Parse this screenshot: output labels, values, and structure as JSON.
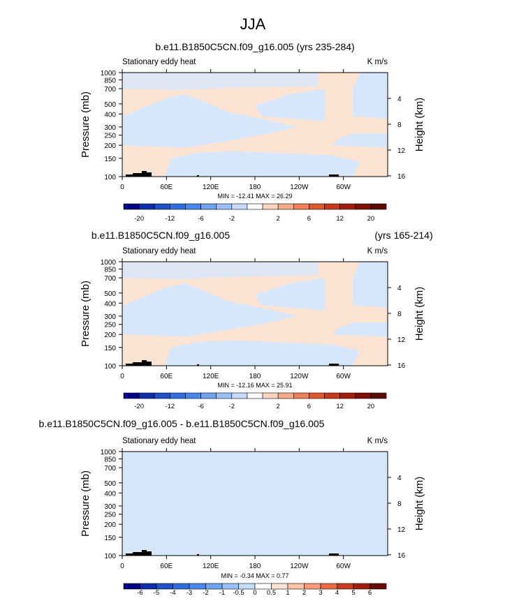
{
  "page_title": "JJA",
  "colors": {
    "blue_shade": "#d6e6fb",
    "peach_shade": "#fde3d2",
    "topography": "#000000"
  },
  "chart_data": [
    {
      "type": "heatmap",
      "title": "b.e11.B1850C5CN.f09_g16.005 (yrs 235-284)",
      "title_right": "",
      "left_string": "Stationary eddy heat",
      "right_string": "K m/s",
      "ylabel": "Pressure (mb)",
      "y2label": "Height (km)",
      "y_scale": "log",
      "ylim": [
        1000,
        100
      ],
      "y_ticks": [
        100,
        150,
        200,
        250,
        300,
        400,
        500,
        700,
        850,
        1000
      ],
      "y2_ticks": [
        4,
        8,
        12,
        16
      ],
      "x_ticks": [
        "0",
        "60E",
        "120E",
        "180",
        "120W",
        "60W"
      ],
      "xlim": [
        0,
        360
      ],
      "min_max_label": "MIN = -12.41   MAX =  26.29",
      "min": -12.41,
      "max": 26.29,
      "colorbar_levels": [
        -20,
        -16,
        -12,
        -8,
        -6,
        -4,
        -2,
        -1,
        1,
        2,
        4,
        6,
        8,
        12,
        16,
        20
      ],
      "colorbar_labels": [
        "-20",
        "-12",
        "-6",
        "-2",
        "2",
        "6",
        "12",
        "20"
      ],
      "colorbar_colors": [
        "#00008b",
        "#0f2fa8",
        "#1f51c8",
        "#2e6ee0",
        "#4a87ec",
        "#6ea3f2",
        "#96c0f7",
        "#c3dcfb",
        "#ffffff",
        "#fdd5be",
        "#f8aa88",
        "#f17f58",
        "#e0582f",
        "#c63818",
        "#a31d0c",
        "#7d0e06",
        "#5c0a04"
      ]
    },
    {
      "type": "heatmap",
      "title": "b.e11.B1850C5CN.f09_g16.005",
      "title_right": "(yrs 165-214)",
      "left_string": "Stationary eddy heat",
      "right_string": "K m/s",
      "ylabel": "Pressure (mb)",
      "y2label": "Height (km)",
      "y_scale": "log",
      "ylim": [
        1000,
        100
      ],
      "y_ticks": [
        100,
        150,
        200,
        250,
        300,
        400,
        500,
        700,
        850,
        1000
      ],
      "y2_ticks": [
        4,
        8,
        12,
        16
      ],
      "x_ticks": [
        "0",
        "60E",
        "120E",
        "180",
        "120W",
        "60W"
      ],
      "xlim": [
        0,
        360
      ],
      "min_max_label": "MIN = -12.16   MAX =  25.91",
      "min": -12.16,
      "max": 25.91,
      "colorbar_levels": [
        -20,
        -16,
        -12,
        -8,
        -6,
        -4,
        -2,
        -1,
        1,
        2,
        4,
        6,
        8,
        12,
        16,
        20
      ],
      "colorbar_labels": [
        "-20",
        "-12",
        "-6",
        "-2",
        "2",
        "6",
        "12",
        "20"
      ],
      "colorbar_colors": [
        "#00008b",
        "#0f2fa8",
        "#1f51c8",
        "#2e6ee0",
        "#4a87ec",
        "#6ea3f2",
        "#96c0f7",
        "#c3dcfb",
        "#ffffff",
        "#fdd5be",
        "#f8aa88",
        "#f17f58",
        "#e0582f",
        "#c63818",
        "#a31d0c",
        "#7d0e06",
        "#5c0a04"
      ]
    },
    {
      "type": "heatmap",
      "title": "b.e11.B1850C5CN.f09_g16.005 - b.e11.B1850C5CN.f09_g16.005",
      "title_right": "",
      "left_string": "Stationary eddy heat",
      "right_string": "K m/s",
      "ylabel": "Pressure (mb)",
      "y2label": "Height (km)",
      "y_scale": "log",
      "ylim": [
        1000,
        100
      ],
      "y_ticks": [
        100,
        150,
        200,
        250,
        300,
        400,
        500,
        700,
        850,
        1000
      ],
      "y2_ticks": [
        4,
        8,
        12,
        16
      ],
      "x_ticks": [
        "0",
        "60E",
        "120E",
        "180",
        "120W",
        "60W"
      ],
      "xlim": [
        0,
        360
      ],
      "min_max_label": "MIN = -0.34   MAX =  0.77",
      "min": -0.34,
      "max": 0.77,
      "colorbar_levels": [
        -6,
        -5,
        -4,
        -3,
        -2,
        -1,
        -0.5,
        0,
        0.5,
        1,
        2,
        3,
        4,
        5,
        6
      ],
      "colorbar_labels": [
        "-6",
        "-5",
        "-4",
        "-3",
        "-2",
        "-1",
        "-0.5",
        "0",
        "0.5",
        "1",
        "2",
        "3",
        "4",
        "5",
        "6"
      ],
      "colorbar_colors": [
        "#00008b",
        "#0f2fa8",
        "#1f51c8",
        "#2e6ee0",
        "#4a87ec",
        "#6ea3f2",
        "#96c0f7",
        "#c3dcfb",
        "#ffffff",
        "#fde3d2",
        "#fbc3a6",
        "#f59a74",
        "#e76a40",
        "#c93c1b",
        "#a31d0c",
        "#6a0b05"
      ]
    }
  ]
}
